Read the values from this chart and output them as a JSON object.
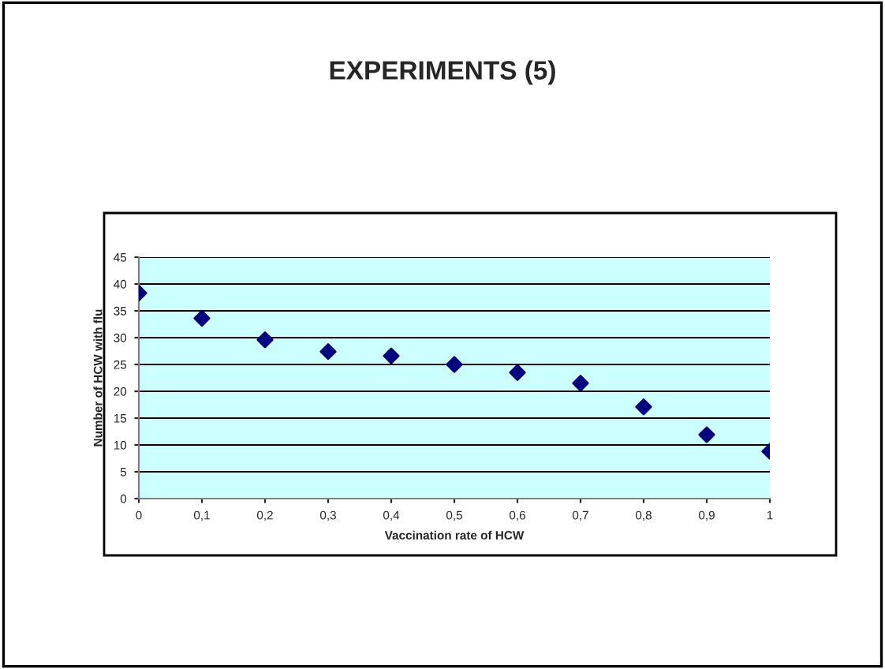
{
  "chart_data": {
    "type": "scatter",
    "title": "EXPERIMENTS (5)",
    "xlabel": "Vaccination rate of HCW",
    "ylabel": "Number of HCW with flu",
    "x": [
      0,
      0.1,
      0.2,
      0.3,
      0.4,
      0.5,
      0.6,
      0.7,
      0.8,
      0.9,
      1
    ],
    "series": [
      {
        "color": "#000080",
        "values": [
          38.3,
          33.6,
          29.6,
          27.4,
          26.6,
          25.0,
          23.5,
          21.5,
          17.1,
          11.9,
          8.8
        ]
      }
    ],
    "xlim": [
      0,
      1
    ],
    "xticks": [
      0,
      {
        "value": 0.1,
        "label": "0,1"
      },
      {
        "value": 0.2,
        "label": "0,2"
      },
      {
        "value": 0.3,
        "label": "0,3"
      },
      {
        "value": 0.4,
        "label": "0,4"
      },
      {
        "value": 0.5,
        "label": "0,5"
      },
      {
        "value": 0.6,
        "label": "0,6"
      },
      {
        "value": 0.7,
        "label": "0,7"
      },
      {
        "value": 0.8,
        "label": "0,8"
      },
      {
        "value": 0.9,
        "label": "0,9"
      },
      1
    ],
    "ylim": [
      0,
      45
    ],
    "yticks": [
      0,
      5,
      10,
      15,
      20,
      25,
      30,
      35,
      40,
      45
    ],
    "grid": "y",
    "marker": "diamond",
    "legend": false
  }
}
